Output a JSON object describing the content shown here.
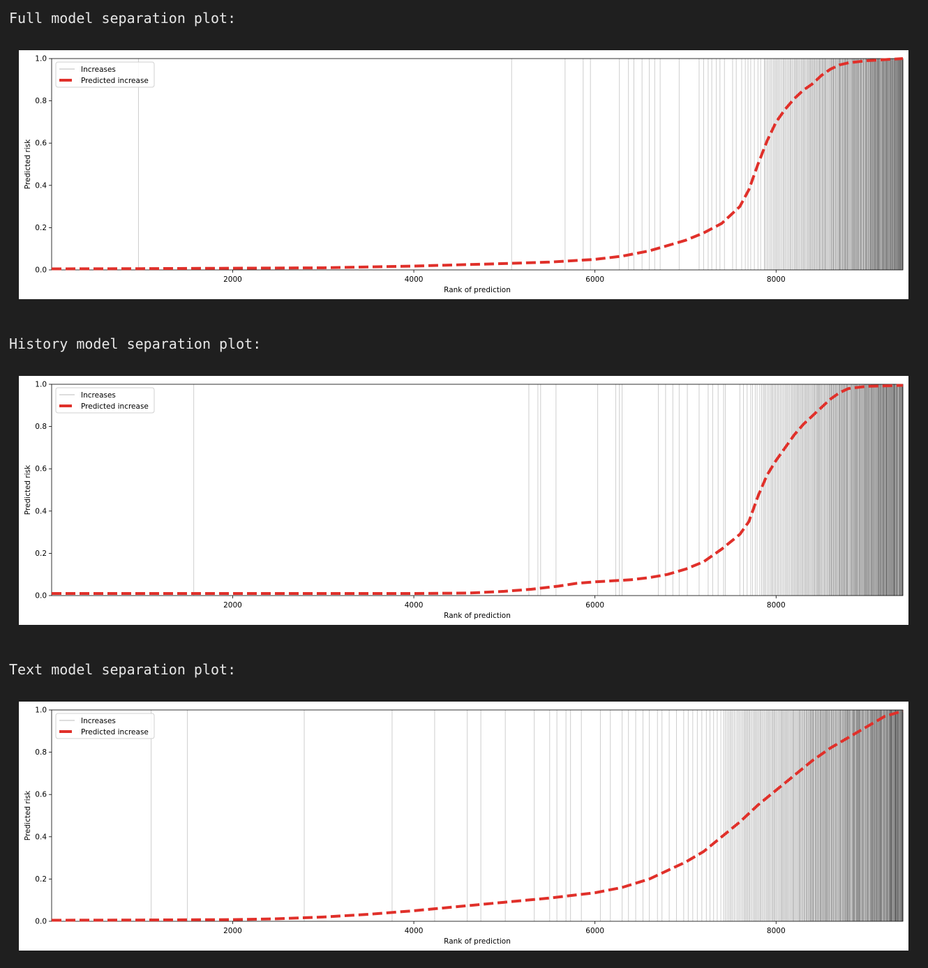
{
  "sections": [
    {
      "heading": "Full model separation plot:"
    },
    {
      "heading": "History model separation plot:"
    },
    {
      "heading": "Text model separation plot:"
    }
  ],
  "colors": {
    "background": "#1f1f1f",
    "heading_text": "#e6e6e6",
    "plot_background": "#ffffff",
    "increase_lines": "#222222",
    "predicted_line": "#e0302a"
  },
  "chart_data": [
    {
      "type": "line",
      "subtype": "separation-plot",
      "xlabel": "Rank of prediction",
      "ylabel": "Predicted risk",
      "xlim": [
        1,
        9400
      ],
      "ylim": [
        0,
        1
      ],
      "xticks": [
        2000,
        4000,
        6000,
        8000
      ],
      "yticks": [
        0.0,
        0.2,
        0.4,
        0.6,
        0.8,
        1.0
      ],
      "legend": {
        "position": "top-left",
        "entries": [
          "Increases",
          "Predicted increase"
        ]
      },
      "series": [
        {
          "name": "Predicted increase",
          "style": "dashed",
          "x": [
            1,
            1000,
            2000,
            3000,
            4000,
            5000,
            5500,
            6000,
            6300,
            6600,
            6800,
            7000,
            7200,
            7400,
            7600,
            7700,
            7800,
            7900,
            8000,
            8100,
            8200,
            8300,
            8400,
            8500,
            8600,
            8700,
            8800,
            9000,
            9200,
            9400
          ],
          "y": [
            0.005,
            0.006,
            0.008,
            0.01,
            0.018,
            0.03,
            0.037,
            0.05,
            0.065,
            0.09,
            0.115,
            0.14,
            0.175,
            0.22,
            0.3,
            0.38,
            0.5,
            0.61,
            0.7,
            0.76,
            0.81,
            0.85,
            0.88,
            0.92,
            0.95,
            0.97,
            0.98,
            0.99,
            0.995,
            1.0
          ]
        }
      ],
      "increases": {
        "name": "Increases",
        "sparse_x": [
          960,
          5080,
          5670,
          5870,
          5950,
          6270,
          6370,
          6430,
          6520,
          6600,
          6660,
          6720,
          6930,
          7150,
          7200,
          7250,
          7290,
          7340,
          7380,
          7430,
          7520,
          7560,
          7620,
          7660,
          7690,
          7720,
          7760,
          7800,
          7830,
          7870
        ],
        "dense_start": 7880,
        "dense_end": 9400
      }
    },
    {
      "type": "line",
      "subtype": "separation-plot",
      "xlabel": "Rank of prediction",
      "ylabel": "Predicted risk",
      "xlim": [
        1,
        9400
      ],
      "ylim": [
        0,
        1
      ],
      "xticks": [
        2000,
        4000,
        6000,
        8000
      ],
      "yticks": [
        0.0,
        0.2,
        0.4,
        0.6,
        0.8,
        1.0
      ],
      "legend": {
        "position": "top-left",
        "entries": [
          "Increases",
          "Predicted increase"
        ]
      },
      "series": [
        {
          "name": "Predicted increase",
          "style": "dashed",
          "x": [
            1,
            1000,
            2000,
            3000,
            4000,
            4600,
            5000,
            5300,
            5600,
            5800,
            6000,
            6200,
            6400,
            6600,
            6800,
            7000,
            7200,
            7400,
            7600,
            7700,
            7800,
            7900,
            8000,
            8100,
            8200,
            8300,
            8400,
            8500,
            8600,
            8700,
            8800,
            9000,
            9400
          ],
          "y": [
            0.01,
            0.01,
            0.01,
            0.01,
            0.01,
            0.012,
            0.02,
            0.03,
            0.045,
            0.058,
            0.065,
            0.07,
            0.075,
            0.085,
            0.1,
            0.125,
            0.16,
            0.22,
            0.29,
            0.35,
            0.47,
            0.57,
            0.64,
            0.7,
            0.76,
            0.81,
            0.85,
            0.89,
            0.93,
            0.96,
            0.98,
            0.99,
            0.995
          ]
        }
      ],
      "increases": {
        "name": "Increases",
        "sparse_x": [
          1570,
          5270,
          5370,
          5400,
          5570,
          6030,
          6230,
          6270,
          6300,
          6700,
          6780,
          6860,
          6930,
          7020,
          7150,
          7250,
          7300,
          7360,
          7420,
          7440,
          7600,
          7640,
          7680,
          7720,
          7740,
          7770,
          7790,
          7820
        ],
        "dense_start": 7840,
        "dense_end": 9400
      }
    },
    {
      "type": "line",
      "subtype": "separation-plot",
      "xlabel": "Rank of prediction",
      "ylabel": "Predicted risk",
      "xlim": [
        1,
        9400
      ],
      "ylim": [
        0,
        1
      ],
      "xticks": [
        2000,
        4000,
        6000,
        8000
      ],
      "yticks": [
        0.0,
        0.2,
        0.4,
        0.6,
        0.8,
        1.0
      ],
      "legend": {
        "position": "top-left",
        "entries": [
          "Increases",
          "Predicted increase"
        ]
      },
      "series": [
        {
          "name": "Predicted increase",
          "style": "dashed",
          "x": [
            1,
            1000,
            2000,
            2500,
            3000,
            3500,
            4000,
            4500,
            5000,
            5500,
            6000,
            6300,
            6600,
            6800,
            7000,
            7200,
            7400,
            7600,
            7800,
            8000,
            8200,
            8400,
            8600,
            8800,
            9000,
            9200,
            9400
          ],
          "y": [
            0.005,
            0.006,
            0.008,
            0.012,
            0.02,
            0.033,
            0.05,
            0.07,
            0.09,
            0.11,
            0.135,
            0.16,
            0.2,
            0.24,
            0.28,
            0.33,
            0.4,
            0.47,
            0.55,
            0.62,
            0.69,
            0.76,
            0.82,
            0.87,
            0.92,
            0.97,
            0.995
          ]
        }
      ],
      "increases": {
        "name": "Increases",
        "sparse_x": [
          1100,
          1500,
          2790,
          3760,
          4230,
          4590,
          4740,
          5010,
          5330,
          5500,
          5580,
          5680,
          5730,
          5850,
          6060,
          6170,
          6300,
          6370,
          6450,
          6530,
          6600,
          6690,
          6740,
          6820,
          6900,
          6980,
          7030,
          7080,
          7130,
          7180,
          7230,
          7270,
          7310,
          7350,
          7390
        ],
        "dense_start": 7420,
        "dense_end": 9400
      }
    }
  ]
}
